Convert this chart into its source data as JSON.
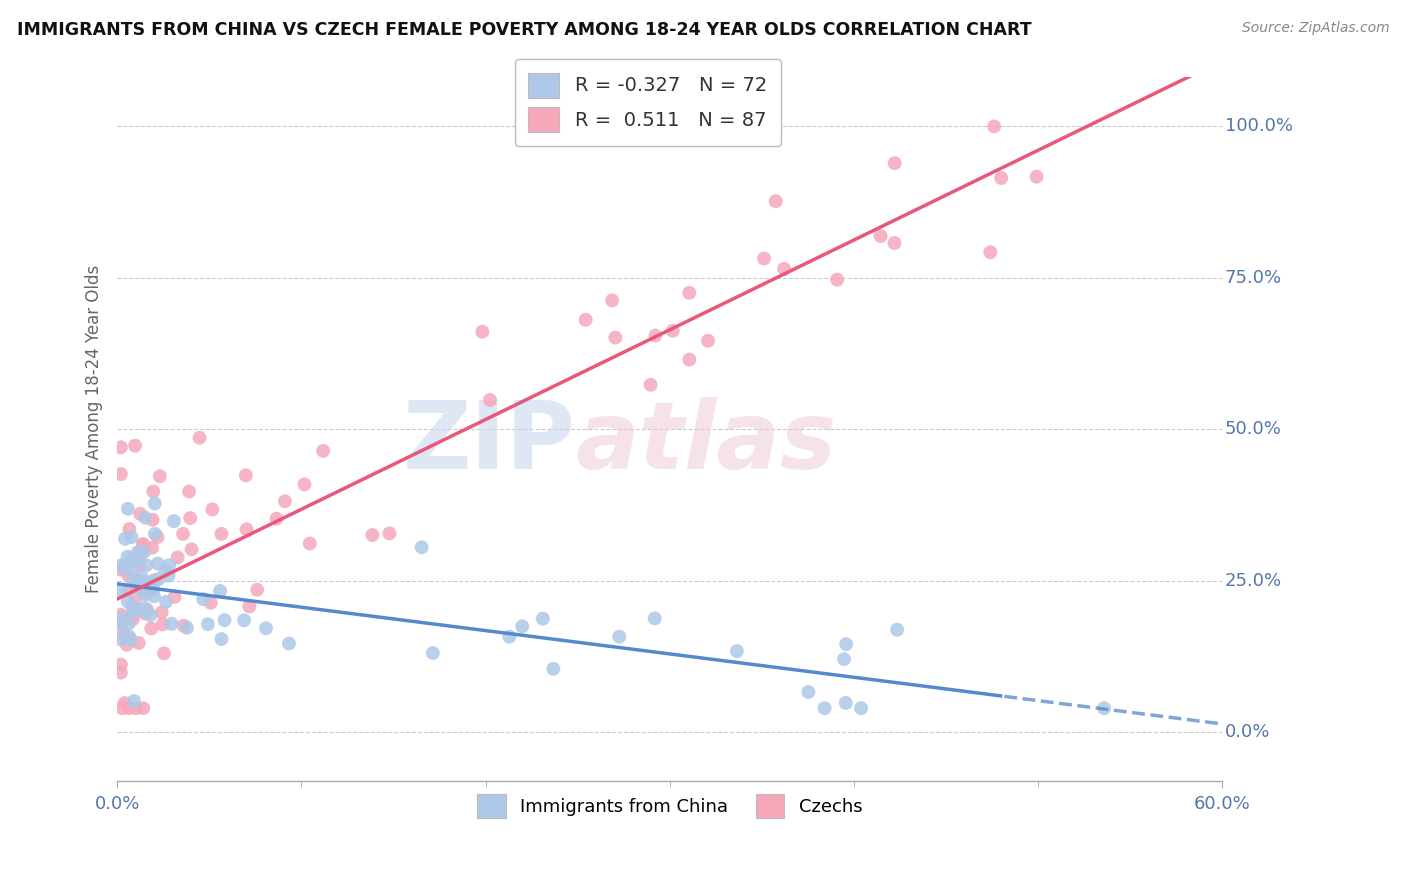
{
  "title": "IMMIGRANTS FROM CHINA VS CZECH FEMALE POVERTY AMONG 18-24 YEAR OLDS CORRELATION CHART",
  "source": "Source: ZipAtlas.com",
  "xlim": [
    0.0,
    0.6
  ],
  "ylim": [
    -0.08,
    1.08
  ],
  "blue_r": -0.327,
  "blue_n": 72,
  "pink_r": 0.511,
  "pink_n": 87,
  "blue_color": "#adc8e8",
  "pink_color": "#f5a8ba",
  "blue_line_color": "#5588cc",
  "pink_line_color": "#e85878",
  "legend_label_blue": "Immigrants from China",
  "legend_label_pink": "Czechs",
  "ylabel": "Female Poverty Among 18-24 Year Olds",
  "yticks": [
    0.0,
    0.25,
    0.5,
    0.75,
    1.0
  ],
  "ytick_labels": [
    "0.0%",
    "25.0%",
    "50.0%",
    "75.0%",
    "100.0%"
  ],
  "xtick_labels": [
    "0.0%",
    "60.0%"
  ],
  "blue_intercept": 0.245,
  "blue_slope": -0.385,
  "pink_intercept": 0.22,
  "pink_slope": 1.48
}
